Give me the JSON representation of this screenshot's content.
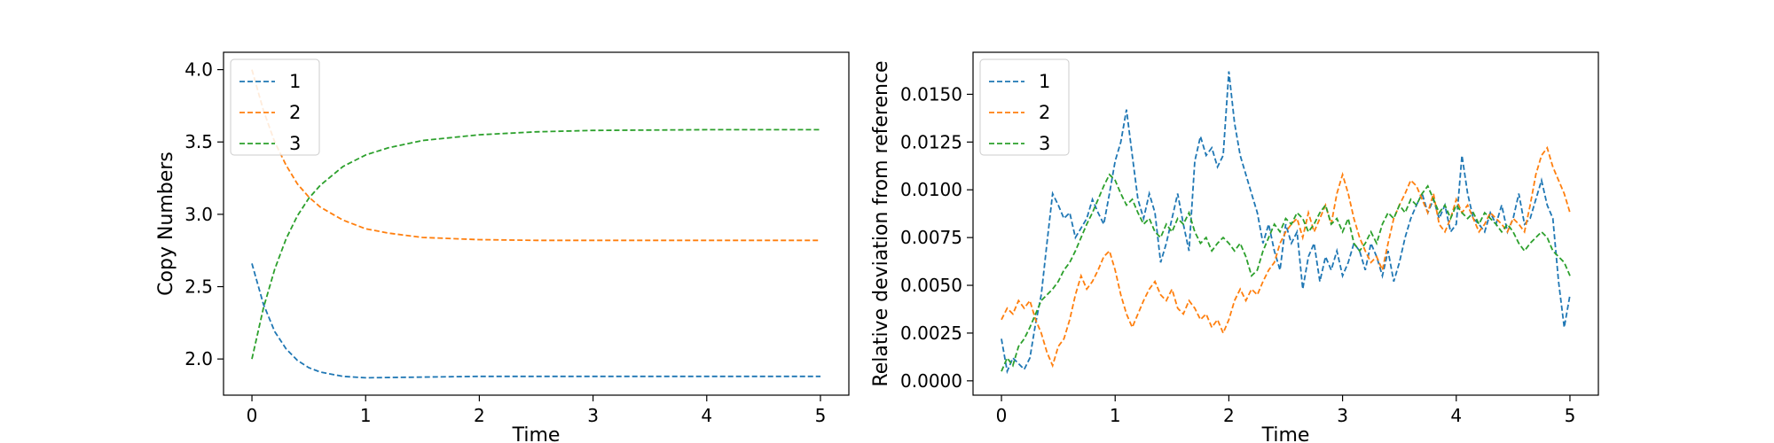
{
  "chart_data": [
    {
      "type": "line",
      "xlabel": "Time",
      "ylabel": "Copy Numbers",
      "xlim": [
        -0.25,
        5.25
      ],
      "ylim": [
        1.75,
        4.12
      ],
      "xticks": [
        0,
        1,
        2,
        3,
        4,
        5
      ],
      "yticks": [
        2.0,
        2.5,
        3.0,
        3.5,
        4.0
      ],
      "ytick_labels": [
        "2.0",
        "2.5",
        "3.0",
        "3.5",
        "4.0"
      ],
      "legend": "top-left",
      "line_style": "dashed",
      "series": [
        {
          "name": "1",
          "color": "#1f77b4",
          "x": [
            0,
            0.1,
            0.2,
            0.3,
            0.4,
            0.5,
            0.6,
            0.8,
            1.0,
            1.5,
            2.0,
            3.0,
            4.0,
            5.0
          ],
          "y": [
            2.66,
            2.38,
            2.19,
            2.07,
            1.99,
            1.94,
            1.91,
            1.88,
            1.87,
            1.875,
            1.88,
            1.88,
            1.88,
            1.88
          ]
        },
        {
          "name": "2",
          "color": "#ff7f0e",
          "x": [
            0,
            0.1,
            0.2,
            0.3,
            0.4,
            0.5,
            0.6,
            0.8,
            1.0,
            1.2,
            1.5,
            2.0,
            2.5,
            3.0,
            4.0,
            5.0
          ],
          "y": [
            4.0,
            3.72,
            3.5,
            3.34,
            3.21,
            3.12,
            3.05,
            2.96,
            2.9,
            2.87,
            2.84,
            2.825,
            2.82,
            2.82,
            2.82,
            2.82
          ]
        },
        {
          "name": "3",
          "color": "#2ca02c",
          "x": [
            0,
            0.1,
            0.2,
            0.3,
            0.4,
            0.5,
            0.6,
            0.8,
            1.0,
            1.2,
            1.5,
            2.0,
            2.5,
            3.0,
            4.0,
            5.0
          ],
          "y": [
            2.0,
            2.35,
            2.62,
            2.83,
            2.99,
            3.11,
            3.2,
            3.33,
            3.41,
            3.46,
            3.51,
            3.55,
            3.57,
            3.58,
            3.585,
            3.585
          ]
        }
      ]
    },
    {
      "type": "line",
      "xlabel": "Time",
      "ylabel": "Relative deviation from reference",
      "xlim": [
        -0.25,
        5.25
      ],
      "ylim": [
        -0.00075,
        0.0172
      ],
      "xticks": [
        0,
        1,
        2,
        3,
        4,
        5
      ],
      "yticks": [
        0.0,
        0.0025,
        0.005,
        0.0075,
        0.01,
        0.0125,
        0.015
      ],
      "ytick_labels": [
        "0.0000",
        "0.0025",
        "0.0050",
        "0.0075",
        "0.0100",
        "0.0125",
        "0.0150"
      ],
      "legend": "top-left",
      "line_style": "dashed",
      "series": [
        {
          "name": "1",
          "color": "#1f77b4",
          "x": [
            0,
            0.05,
            0.1,
            0.15,
            0.2,
            0.25,
            0.3,
            0.35,
            0.4,
            0.45,
            0.5,
            0.55,
            0.6,
            0.65,
            0.7,
            0.75,
            0.8,
            0.85,
            0.9,
            0.95,
            1.0,
            1.05,
            1.1,
            1.15,
            1.2,
            1.25,
            1.3,
            1.35,
            1.4,
            1.45,
            1.5,
            1.55,
            1.6,
            1.65,
            1.7,
            1.75,
            1.8,
            1.85,
            1.9,
            1.95,
            2.0,
            2.05,
            2.1,
            2.15,
            2.2,
            2.25,
            2.3,
            2.35,
            2.4,
            2.45,
            2.5,
            2.55,
            2.6,
            2.65,
            2.7,
            2.75,
            2.8,
            2.85,
            2.9,
            2.95,
            3.0,
            3.05,
            3.1,
            3.15,
            3.2,
            3.25,
            3.3,
            3.35,
            3.4,
            3.45,
            3.5,
            3.55,
            3.6,
            3.65,
            3.7,
            3.75,
            3.8,
            3.85,
            3.9,
            3.95,
            4.0,
            4.05,
            4.1,
            4.15,
            4.2,
            4.25,
            4.3,
            4.35,
            4.4,
            4.45,
            4.5,
            4.55,
            4.6,
            4.65,
            4.7,
            4.75,
            4.8,
            4.85,
            4.9,
            4.95,
            5.0
          ],
          "y": [
            0.0022,
            0.0005,
            0.0012,
            0.0009,
            0.0006,
            0.0012,
            0.003,
            0.0045,
            0.0072,
            0.0098,
            0.0092,
            0.0085,
            0.0088,
            0.0075,
            0.008,
            0.0085,
            0.0095,
            0.0088,
            0.0082,
            0.0098,
            0.0115,
            0.0125,
            0.0142,
            0.0118,
            0.0095,
            0.0085,
            0.0098,
            0.0088,
            0.0062,
            0.0072,
            0.0085,
            0.0098,
            0.0082,
            0.0068,
            0.0115,
            0.0128,
            0.0118,
            0.0122,
            0.0112,
            0.0118,
            0.0162,
            0.0135,
            0.0118,
            0.0108,
            0.0098,
            0.0088,
            0.0072,
            0.0082,
            0.0068,
            0.0058,
            0.0082,
            0.0072,
            0.0078,
            0.0048,
            0.0065,
            0.0072,
            0.0052,
            0.0065,
            0.0058,
            0.0068,
            0.0055,
            0.0062,
            0.0072,
            0.0068,
            0.0058,
            0.0072,
            0.0065,
            0.0055,
            0.0068,
            0.0052,
            0.0062,
            0.0075,
            0.0085,
            0.0092,
            0.0098,
            0.0088,
            0.0095,
            0.0085,
            0.0092,
            0.0078,
            0.0082,
            0.0118,
            0.0098,
            0.0085,
            0.0082,
            0.0078,
            0.0088,
            0.0082,
            0.0092,
            0.0078,
            0.0085,
            0.0098,
            0.0082,
            0.0085,
            0.0095,
            0.0105,
            0.0092,
            0.0085,
            0.0052,
            0.0028,
            0.0045
          ]
        },
        {
          "name": "2",
          "color": "#ff7f0e",
          "x": [
            0,
            0.05,
            0.1,
            0.15,
            0.2,
            0.25,
            0.3,
            0.35,
            0.4,
            0.45,
            0.5,
            0.55,
            0.6,
            0.65,
            0.7,
            0.75,
            0.8,
            0.85,
            0.9,
            0.95,
            1.0,
            1.05,
            1.1,
            1.15,
            1.2,
            1.25,
            1.3,
            1.35,
            1.4,
            1.45,
            1.5,
            1.55,
            1.6,
            1.65,
            1.7,
            1.75,
            1.8,
            1.85,
            1.9,
            1.95,
            2.0,
            2.05,
            2.1,
            2.15,
            2.2,
            2.25,
            2.3,
            2.35,
            2.4,
            2.45,
            2.5,
            2.55,
            2.6,
            2.65,
            2.7,
            2.75,
            2.8,
            2.85,
            2.9,
            2.95,
            3.0,
            3.05,
            3.1,
            3.15,
            3.2,
            3.25,
            3.3,
            3.35,
            3.4,
            3.45,
            3.5,
            3.55,
            3.6,
            3.65,
            3.7,
            3.75,
            3.8,
            3.85,
            3.9,
            3.95,
            4.0,
            4.05,
            4.1,
            4.15,
            4.2,
            4.25,
            4.3,
            4.35,
            4.4,
            4.45,
            4.5,
            4.55,
            4.6,
            4.65,
            4.7,
            4.75,
            4.8,
            4.85,
            4.9,
            4.95,
            5.0
          ],
          "y": [
            0.0032,
            0.0038,
            0.0035,
            0.0042,
            0.0038,
            0.0042,
            0.0032,
            0.0025,
            0.0015,
            0.0008,
            0.0018,
            0.0022,
            0.0032,
            0.0045,
            0.0055,
            0.0048,
            0.0052,
            0.0058,
            0.0065,
            0.0068,
            0.0058,
            0.0045,
            0.0035,
            0.0028,
            0.0035,
            0.0042,
            0.0048,
            0.0052,
            0.0045,
            0.0042,
            0.0048,
            0.0038,
            0.0035,
            0.0042,
            0.0038,
            0.0032,
            0.0035,
            0.0028,
            0.0032,
            0.0025,
            0.0032,
            0.0042,
            0.0048,
            0.0042,
            0.0048,
            0.0045,
            0.0052,
            0.0058,
            0.0062,
            0.0072,
            0.0078,
            0.0082,
            0.0085,
            0.0075,
            0.0088,
            0.0078,
            0.0085,
            0.0092,
            0.0082,
            0.0098,
            0.0108,
            0.0098,
            0.0085,
            0.0075,
            0.0068,
            0.0062,
            0.0065,
            0.0058,
            0.0072,
            0.0085,
            0.0092,
            0.0098,
            0.0105,
            0.0102,
            0.0095,
            0.0088,
            0.0098,
            0.0082,
            0.0078,
            0.0085,
            0.0095,
            0.0088,
            0.0092,
            0.0085,
            0.0078,
            0.0082,
            0.0088,
            0.0085,
            0.0082,
            0.0078,
            0.0085,
            0.0082,
            0.0078,
            0.0092,
            0.0108,
            0.0118,
            0.0122,
            0.0112,
            0.0105,
            0.0098,
            0.0088
          ]
        },
        {
          "name": "3",
          "color": "#2ca02c",
          "x": [
            0,
            0.05,
            0.1,
            0.15,
            0.2,
            0.25,
            0.3,
            0.35,
            0.4,
            0.45,
            0.5,
            0.55,
            0.6,
            0.65,
            0.7,
            0.75,
            0.8,
            0.85,
            0.9,
            0.95,
            1.0,
            1.05,
            1.1,
            1.15,
            1.2,
            1.25,
            1.3,
            1.35,
            1.4,
            1.45,
            1.5,
            1.55,
            1.6,
            1.65,
            1.7,
            1.75,
            1.8,
            1.85,
            1.9,
            1.95,
            2.0,
            2.05,
            2.1,
            2.15,
            2.2,
            2.25,
            2.3,
            2.35,
            2.4,
            2.45,
            2.5,
            2.55,
            2.6,
            2.65,
            2.7,
            2.75,
            2.8,
            2.85,
            2.9,
            2.95,
            3.0,
            3.05,
            3.1,
            3.15,
            3.2,
            3.25,
            3.3,
            3.35,
            3.4,
            3.45,
            3.5,
            3.55,
            3.6,
            3.65,
            3.7,
            3.75,
            3.8,
            3.85,
            3.9,
            3.95,
            4.0,
            4.05,
            4.1,
            4.15,
            4.2,
            4.25,
            4.3,
            4.35,
            4.4,
            4.45,
            4.5,
            4.55,
            4.6,
            4.65,
            4.7,
            4.75,
            4.8,
            4.85,
            4.9,
            4.95,
            5.0
          ],
          "y": [
            0.0005,
            0.0012,
            0.0008,
            0.0018,
            0.0022,
            0.0028,
            0.0035,
            0.0042,
            0.0045,
            0.0048,
            0.0052,
            0.0058,
            0.0062,
            0.0068,
            0.0075,
            0.0082,
            0.0088,
            0.0095,
            0.0102,
            0.0108,
            0.0105,
            0.0098,
            0.0092,
            0.0095,
            0.0088,
            0.0082,
            0.0085,
            0.0078,
            0.0075,
            0.0082,
            0.0078,
            0.0085,
            0.0082,
            0.0088,
            0.0078,
            0.0072,
            0.0075,
            0.0068,
            0.0072,
            0.0075,
            0.0072,
            0.0068,
            0.0072,
            0.0065,
            0.0055,
            0.0058,
            0.0068,
            0.0075,
            0.0082,
            0.0078,
            0.0085,
            0.0082,
            0.0088,
            0.0085,
            0.0078,
            0.0082,
            0.0088,
            0.0092,
            0.0082,
            0.0085,
            0.0078,
            0.0085,
            0.0072,
            0.0068,
            0.0072,
            0.0078,
            0.0072,
            0.0082,
            0.0088,
            0.0085,
            0.0092,
            0.0088,
            0.0095,
            0.0092,
            0.0098,
            0.0102,
            0.0095,
            0.0088,
            0.0092,
            0.0085,
            0.0092,
            0.0088,
            0.0085,
            0.0088,
            0.0082,
            0.0088,
            0.0085,
            0.0082,
            0.0078,
            0.0082,
            0.0078,
            0.0072,
            0.0068,
            0.0072,
            0.0075,
            0.0078,
            0.0075,
            0.0068,
            0.0065,
            0.0062,
            0.0055
          ]
        }
      ]
    }
  ]
}
